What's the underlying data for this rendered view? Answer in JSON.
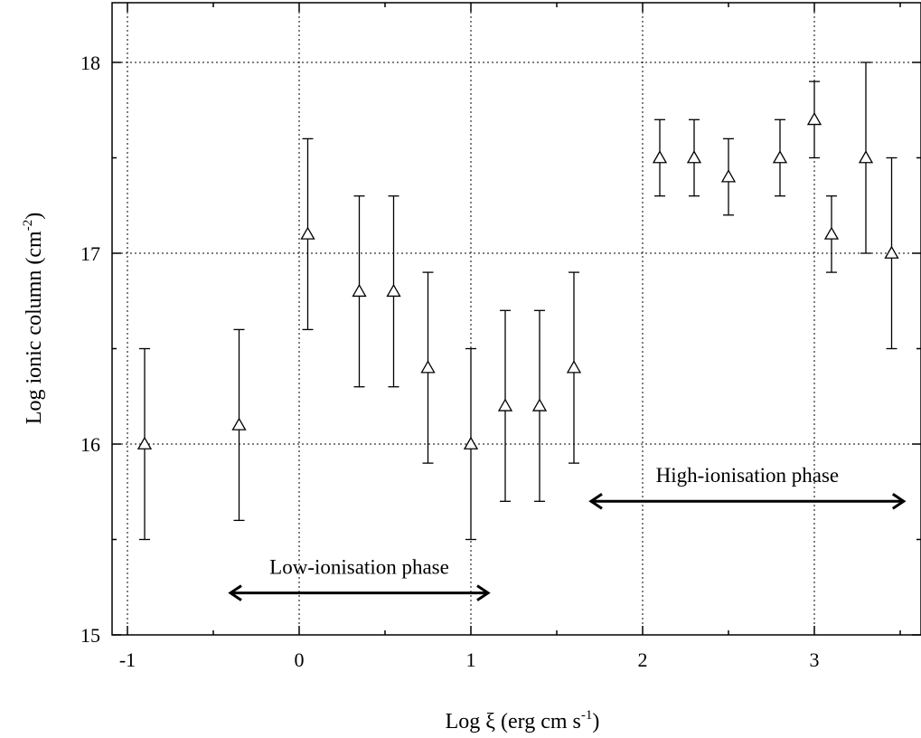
{
  "chart_data": {
    "type": "scatter",
    "xlabel_main": "Log ξ (erg cm s",
    "xlabel_sup": "-1",
    "xlabel_end": ")",
    "ylabel_main": "Log ionic column (cm",
    "ylabel_sup": "-2",
    "ylabel_end": ")",
    "xlim": [
      -1.08,
      3.6
    ],
    "ylim": [
      15,
      18.3
    ],
    "x_ticks": [
      -1,
      0,
      1,
      2,
      3
    ],
    "x_tick_labels": [
      "-1",
      "0",
      "1",
      "2",
      "3"
    ],
    "y_ticks": [
      15,
      16,
      17,
      18
    ],
    "y_tick_labels": [
      "15",
      "16",
      "17",
      "18"
    ],
    "grid": true,
    "marker": "open-triangle",
    "points": [
      {
        "x": -0.9,
        "y": 16.0,
        "ylo": 15.5,
        "yhi": 16.5
      },
      {
        "x": -0.35,
        "y": 16.1,
        "ylo": 15.6,
        "yhi": 16.6
      },
      {
        "x": 0.05,
        "y": 17.1,
        "ylo": 16.6,
        "yhi": 17.6
      },
      {
        "x": 0.35,
        "y": 16.8,
        "ylo": 16.3,
        "yhi": 17.3
      },
      {
        "x": 0.55,
        "y": 16.8,
        "ylo": 16.3,
        "yhi": 17.3
      },
      {
        "x": 0.75,
        "y": 16.4,
        "ylo": 15.9,
        "yhi": 16.9
      },
      {
        "x": 1.0,
        "y": 16.0,
        "ylo": 15.5,
        "yhi": 16.5
      },
      {
        "x": 1.2,
        "y": 16.2,
        "ylo": 15.7,
        "yhi": 16.7
      },
      {
        "x": 1.4,
        "y": 16.2,
        "ylo": 15.7,
        "yhi": 16.7
      },
      {
        "x": 1.6,
        "y": 16.4,
        "ylo": 15.9,
        "yhi": 16.9
      },
      {
        "x": 2.1,
        "y": 17.5,
        "ylo": 17.3,
        "yhi": 17.7
      },
      {
        "x": 2.3,
        "y": 17.5,
        "ylo": 17.3,
        "yhi": 17.7
      },
      {
        "x": 2.5,
        "y": 17.4,
        "ylo": 17.2,
        "yhi": 17.6
      },
      {
        "x": 2.8,
        "y": 17.5,
        "ylo": 17.3,
        "yhi": 17.7
      },
      {
        "x": 3.0,
        "y": 17.7,
        "ylo": 17.5,
        "yhi": 17.9
      },
      {
        "x": 3.1,
        "y": 17.1,
        "ylo": 16.9,
        "yhi": 17.3
      },
      {
        "x": 3.3,
        "y": 17.5,
        "ylo": 17.0,
        "yhi": 18.0
      },
      {
        "x": 3.45,
        "y": 17.0,
        "ylo": 16.5,
        "yhi": 17.5
      }
    ],
    "annotations": [
      {
        "text": "Low-ionisation phase",
        "x_from": -0.4,
        "x_to": 1.1,
        "y_arrow": 15.22,
        "y_text": 15.32
      },
      {
        "text": "High-ionisation phase",
        "x_from": 1.7,
        "x_to": 3.52,
        "y_arrow": 15.7,
        "y_text": 15.8
      }
    ]
  }
}
